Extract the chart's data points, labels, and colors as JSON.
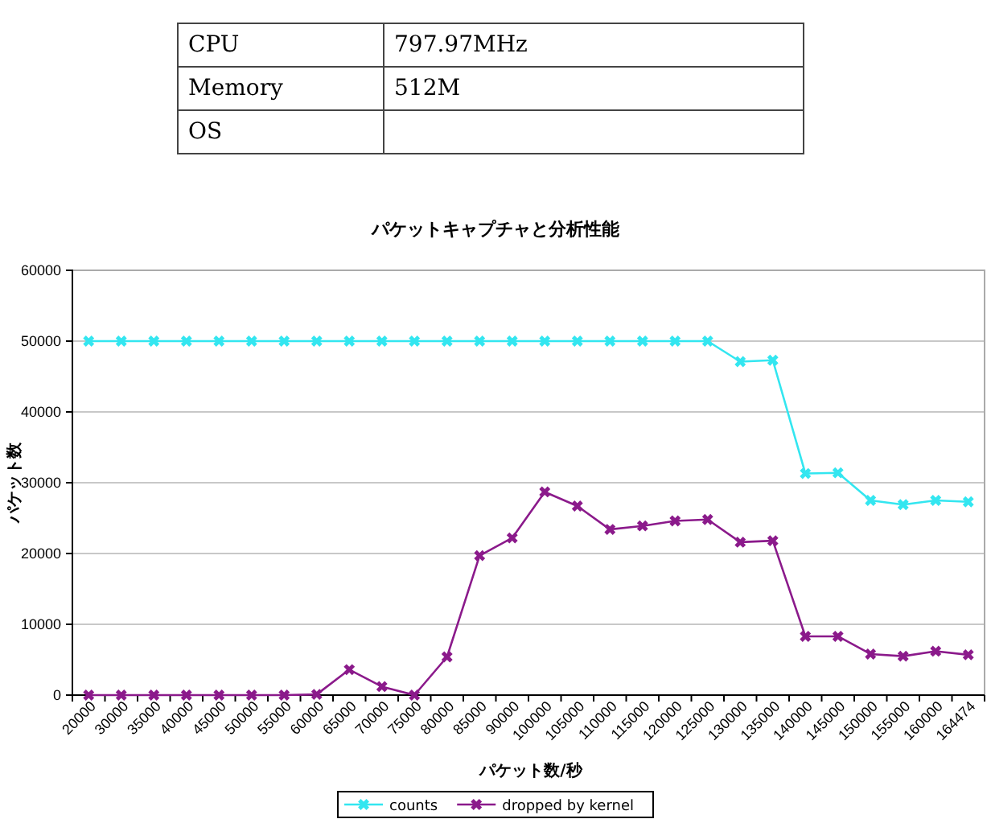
{
  "chart_data": {
    "type": "line",
    "title": "パケットキャプチャと分析性能",
    "xlabel": "パケット数/秒",
    "ylabel": "パケット数",
    "annotations": [
      "CPU",
      "797.97MHz",
      "Memory",
      "512M",
      "OS"
    ],
    "categories": [
      "20000",
      "30000",
      "35000",
      "40000",
      "45000",
      "50000",
      "55000",
      "60000",
      "65000",
      "70000",
      "75000",
      "80000",
      "85000",
      "90000",
      "100000",
      "105000",
      "110000",
      "115000",
      "120000",
      "125000",
      "130000",
      "135000",
      "140000",
      "145000",
      "150000",
      "155000",
      "160000",
      "164474"
    ],
    "series": [
      {
        "name": "counts",
        "color": "#33e6f0",
        "values": [
          50000,
          50000,
          50000,
          50000,
          50000,
          50000,
          50000,
          50000,
          50000,
          50000,
          50000,
          50000,
          50000,
          50000,
          50000,
          50000,
          50000,
          50000,
          50000,
          50000,
          47100,
          47300,
          31300,
          31400,
          27500,
          26900,
          27500,
          27300
        ]
      },
      {
        "name": "dropped by kernel",
        "color": "#8b1a8b",
        "values": [
          0,
          0,
          0,
          0,
          0,
          0,
          0,
          100,
          3600,
          1200,
          0,
          5400,
          19700,
          22200,
          28700,
          26700,
          23400,
          23900,
          24600,
          24800,
          21600,
          21800,
          8300,
          8300,
          5800,
          5500,
          6200,
          5700
        ]
      }
    ],
    "ylim": [
      0,
      60000
    ],
    "yticks": [
      0,
      10000,
      20000,
      30000,
      40000,
      50000,
      60000
    ],
    "grid": "y",
    "legend": "bottom",
    "marker": "cross",
    "line_style": "solid"
  }
}
